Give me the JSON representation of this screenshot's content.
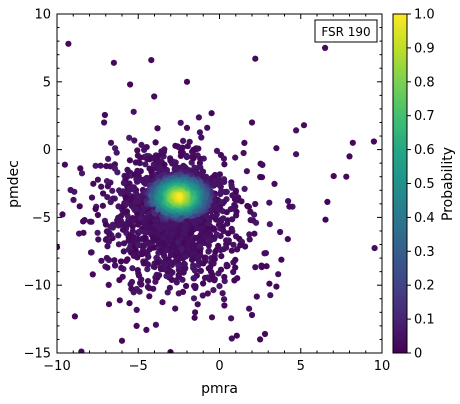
{
  "chart_data": {
    "type": "scatter",
    "title": "",
    "annotation": "FSR 190",
    "xlabel": "pmra",
    "ylabel": "pmdec",
    "xlim": [
      -10,
      10
    ],
    "ylim": [
      -15,
      10
    ],
    "xticks": [
      "−10",
      "−5",
      "0",
      "5",
      "10"
    ],
    "yticks": [
      "−15",
      "−10",
      "−5",
      "0",
      "5",
      "10"
    ],
    "colorbar": {
      "label": "Probability",
      "range": [
        0,
        1
      ],
      "colormap": "viridis",
      "ticks": [
        "0",
        "0.1",
        "0.2",
        "0.3",
        "0.4",
        "0.5",
        "0.6",
        "0.7",
        "0.8",
        "0.9",
        "1.0"
      ]
    },
    "grid": false,
    "cluster_center": {
      "pmra": -2.5,
      "pmdec": -3.5
    },
    "points": [
      {
        "x": -6.5,
        "y": 6.4,
        "p": 0.02
      },
      {
        "x": -4.2,
        "y": 6.6,
        "p": 0.02
      },
      {
        "x": -5.5,
        "y": 4.8,
        "p": 0.02
      },
      {
        "x": -2.0,
        "y": 5.0,
        "p": 0.02
      },
      {
        "x": 2.2,
        "y": 6.7,
        "p": 0.02
      },
      {
        "x": 6.5,
        "y": 7.5,
        "p": 0.02
      },
      {
        "x": -7.1,
        "y": 2.0,
        "p": 0.03
      },
      {
        "x": 5.2,
        "y": 1.8,
        "p": 0.03
      },
      {
        "x": 2.0,
        "y": 2.0,
        "p": 0.03
      },
      {
        "x": -2.0,
        "y": 1.6,
        "p": 0.03
      },
      {
        "x": 9.5,
        "y": 0.6,
        "p": 0.02
      },
      {
        "x": 8.2,
        "y": 0.5,
        "p": 0.02
      },
      {
        "x": 8.0,
        "y": -0.5,
        "p": 0.02
      },
      {
        "x": 7.8,
        "y": -2.0,
        "p": 0.02
      },
      {
        "x": -10.0,
        "y": -7.2,
        "p": 0.02
      },
      {
        "x": -8.9,
        "y": -12.3,
        "p": 0.02
      },
      {
        "x": -8.5,
        "y": -14.9,
        "p": 0.02
      },
      {
        "x": 2.5,
        "y": -14.0,
        "p": 0.02
      },
      {
        "x": 2.8,
        "y": -13.6,
        "p": 0.02
      },
      {
        "x": 2.0,
        "y": -12.2,
        "p": 0.02
      },
      {
        "x": -7.8,
        "y": -9.2,
        "p": 0.02
      },
      {
        "x": -6.8,
        "y": -11.4,
        "p": 0.03
      },
      {
        "x": 3.5,
        "y": -10.1,
        "p": 0.02
      },
      {
        "x": 4.2,
        "y": -6.6,
        "p": 0.02
      },
      {
        "x": 2.9,
        "y": -8.6,
        "p": 0.02
      },
      {
        "x": -8.3,
        "y": -5.2,
        "p": 0.02
      },
      {
        "x": 4.3,
        "y": -4.2,
        "p": 0.02
      },
      {
        "x": 3.5,
        "y": 0.1,
        "p": 0.02
      },
      {
        "x": -5.1,
        "y": -13.0,
        "p": 0.02
      },
      {
        "x": -4.5,
        "y": -13.3,
        "p": 0.02
      },
      {
        "x": -1.5,
        "y": -12.0,
        "p": 0.02
      },
      {
        "x": -9.3,
        "y": 7.8,
        "p": 0.02
      },
      {
        "x": 0.3,
        "y": -11.5,
        "p": 0.02
      },
      {
        "x": -6.0,
        "y": -14.1,
        "p": 0.02
      }
    ]
  }
}
